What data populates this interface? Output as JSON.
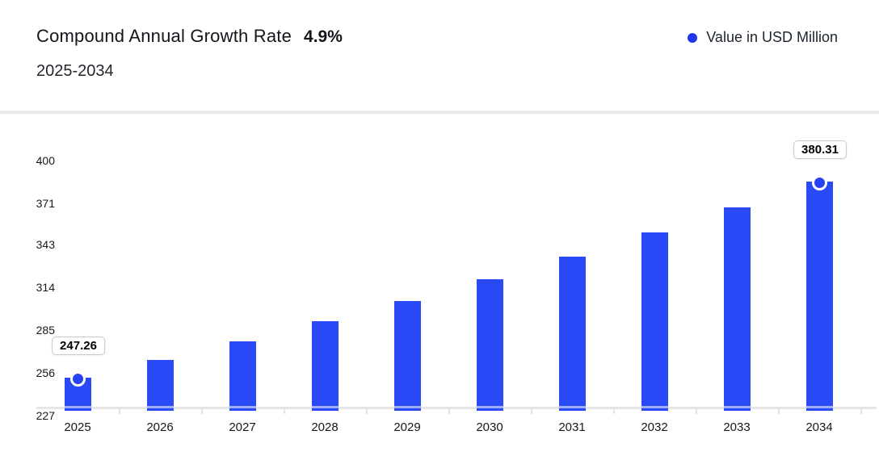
{
  "header": {
    "title": "Compound Annual Growth Rate",
    "cagr_value": "4.9%",
    "subtitle": "2025-2034"
  },
  "legend": {
    "label": "Value in USD Million"
  },
  "colors": {
    "bar": "#2b4af7",
    "legend_dot": "#1f35f0",
    "marker_dot": "#2742f4",
    "axis_line": "#e6e6e6",
    "divider": "#e9e9e9"
  },
  "chart_data": {
    "type": "bar",
    "title": "Compound Annual Growth Rate 4.9%",
    "subtitle": "2025-2034",
    "series_name": "Value in USD Million",
    "categories": [
      "2025",
      "2026",
      "2027",
      "2028",
      "2029",
      "2030",
      "2031",
      "2032",
      "2033",
      "2034"
    ],
    "values": [
      247.26,
      259.38,
      272.09,
      285.42,
      299.41,
      314.08,
      329.47,
      345.61,
      362.55,
      380.31
    ],
    "labeled_points": [
      {
        "index": 0,
        "category": "2025",
        "label": "247.26"
      },
      {
        "index": 9,
        "category": "2034",
        "label": "380.31"
      }
    ],
    "y_ticks": [
      227,
      256,
      285,
      314,
      343,
      371,
      400
    ],
    "ylim": [
      227,
      400
    ],
    "xlabel": "",
    "ylabel": "",
    "grid": false,
    "legend_position": "top-right"
  }
}
